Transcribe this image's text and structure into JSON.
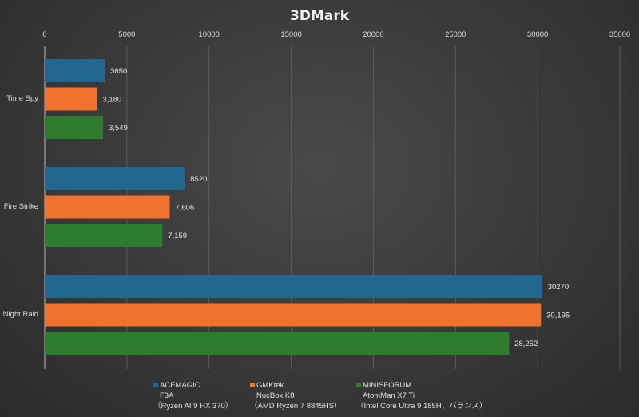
{
  "chart_data": {
    "type": "bar",
    "orientation": "horizontal",
    "title": "3DMark",
    "xlim": [
      0,
      35000
    ],
    "xticks": [
      0,
      5000,
      10000,
      15000,
      20000,
      25000,
      30000,
      35000
    ],
    "xtick_labels": [
      "0",
      "5000",
      "10000",
      "15000",
      "20000",
      "25000",
      "30000",
      "35000"
    ],
    "grid": true,
    "legend_placement": "bottom",
    "categories": [
      "Time Spy",
      "Fire Strike",
      "Night Raid"
    ],
    "series": [
      {
        "name": "ACEMAGIC F3A (Ryzen AI 9 HX 370)",
        "legend_lines": [
          "ACEMAGIC",
          "F3A",
          "（Ryzen AI 9 HX 370）"
        ],
        "color": "#22678f",
        "values": [
          3650,
          8520,
          30270
        ],
        "labels": [
          "3650",
          "8520",
          "30270"
        ]
      },
      {
        "name": "GMKtek NucBox K8 (AMD Ryzen 7 8845HS)",
        "legend_lines": [
          "GMKtek",
          "NucBox K8",
          "（AMD Ryzen 7 8845HS）"
        ],
        "color": "#f0722c",
        "values": [
          3180,
          7606,
          30195
        ],
        "labels": [
          "3,180",
          "7,606",
          "30,195"
        ]
      },
      {
        "name": "MINISFORUM AtomMan X7 Ti (Intel Core Ultra 9 185H、バランス)",
        "legend_lines": [
          "MINISFORUM",
          "AtomMan X7 Ti",
          "（Intel Core Ultra 9 185H、バランス）"
        ],
        "color": "#2e7d2e",
        "values": [
          3549,
          7159,
          28252
        ],
        "labels": [
          "3,549",
          "7,159",
          "28,252"
        ]
      }
    ]
  }
}
